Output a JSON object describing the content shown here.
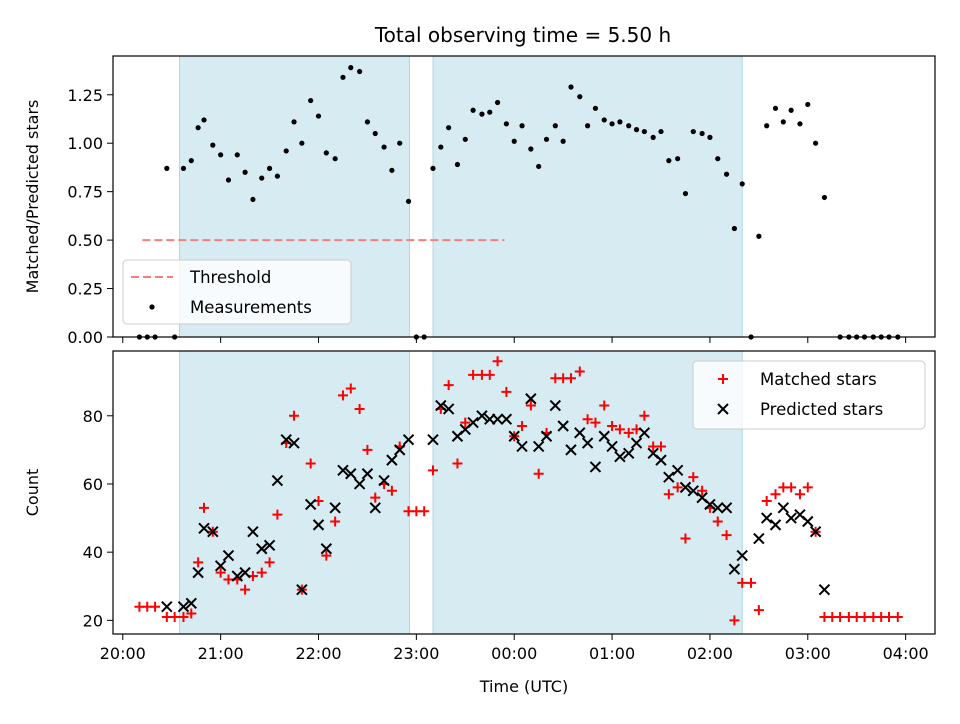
{
  "title": "Total observing time = 5.50 h",
  "chart_data": [
    {
      "type": "scatter",
      "panel": "top",
      "ylabel": "Matched/Predicted stars",
      "ylim": [
        0,
        1.45
      ],
      "yticks": [
        "0.00",
        "0.25",
        "0.50",
        "0.75",
        "1.00",
        "1.25"
      ],
      "grid": false,
      "legend_placement": "lower-left",
      "threshold": {
        "name": "Threshold",
        "value": 0.5,
        "x_start": 20.2,
        "x_end": 23.9,
        "color": "#f08080"
      },
      "series": [
        {
          "name": "Measurements",
          "color": "#000000",
          "points": [
            [
              20.17,
              0
            ],
            [
              20.25,
              0
            ],
            [
              20.33,
              0
            ],
            [
              20.45,
              0.87
            ],
            [
              20.53,
              0
            ],
            [
              20.62,
              0.87
            ],
            [
              20.7,
              0.91
            ],
            [
              20.77,
              1.08
            ],
            [
              20.83,
              1.12
            ],
            [
              20.92,
              0.99
            ],
            [
              21.0,
              0.94
            ],
            [
              21.08,
              0.81
            ],
            [
              21.17,
              0.94
            ],
            [
              21.25,
              0.85
            ],
            [
              21.33,
              0.71
            ],
            [
              21.42,
              0.82
            ],
            [
              21.5,
              0.87
            ],
            [
              21.58,
              0.83
            ],
            [
              21.67,
              0.96
            ],
            [
              21.75,
              1.11
            ],
            [
              21.83,
              1.0
            ],
            [
              21.92,
              1.22
            ],
            [
              22.0,
              1.14
            ],
            [
              22.08,
              0.95
            ],
            [
              22.17,
              0.92
            ],
            [
              22.25,
              1.34
            ],
            [
              22.33,
              1.39
            ],
            [
              22.42,
              1.37
            ],
            [
              22.5,
              1.11
            ],
            [
              22.58,
              1.05
            ],
            [
              22.67,
              0.98
            ],
            [
              22.75,
              0.86
            ],
            [
              22.83,
              1.0
            ],
            [
              22.92,
              0.7
            ],
            [
              23.0,
              0
            ],
            [
              23.08,
              0
            ],
            [
              23.17,
              0.87
            ],
            [
              23.25,
              0.98
            ],
            [
              23.33,
              1.08
            ],
            [
              23.42,
              0.89
            ],
            [
              23.5,
              1.02
            ],
            [
              23.58,
              1.17
            ],
            [
              23.67,
              1.15
            ],
            [
              23.75,
              1.16
            ],
            [
              23.83,
              1.21
            ],
            [
              23.92,
              1.1
            ],
            [
              24.0,
              1.01
            ],
            [
              24.08,
              1.09
            ],
            [
              24.17,
              0.97
            ],
            [
              24.25,
              0.88
            ],
            [
              24.33,
              1.02
            ],
            [
              24.42,
              1.09
            ],
            [
              24.5,
              1.01
            ],
            [
              24.58,
              1.29
            ],
            [
              24.67,
              1.24
            ],
            [
              24.75,
              1.09
            ],
            [
              24.83,
              1.18
            ],
            [
              24.92,
              1.12
            ],
            [
              25.0,
              1.1
            ],
            [
              25.08,
              1.11
            ],
            [
              25.17,
              1.09
            ],
            [
              25.25,
              1.07
            ],
            [
              25.33,
              1.06
            ],
            [
              25.42,
              1.03
            ],
            [
              25.5,
              1.06
            ],
            [
              25.58,
              0.91
            ],
            [
              25.67,
              0.92
            ],
            [
              25.75,
              0.74
            ],
            [
              25.83,
              1.06
            ],
            [
              25.92,
              1.05
            ],
            [
              26.0,
              1.03
            ],
            [
              26.08,
              0.92
            ],
            [
              26.17,
              0.84
            ],
            [
              26.25,
              0.56
            ],
            [
              26.33,
              0.79
            ],
            [
              26.42,
              0
            ],
            [
              26.5,
              0.52
            ],
            [
              26.58,
              1.09
            ],
            [
              26.67,
              1.18
            ],
            [
              26.75,
              1.11
            ],
            [
              26.83,
              1.17
            ],
            [
              26.92,
              1.1
            ],
            [
              27.0,
              1.2
            ],
            [
              27.08,
              1.0
            ],
            [
              27.17,
              0.72
            ],
            [
              27.33,
              0
            ],
            [
              27.42,
              0
            ],
            [
              27.5,
              0
            ],
            [
              27.58,
              0
            ],
            [
              27.67,
              0
            ],
            [
              27.75,
              0
            ],
            [
              27.83,
              0
            ],
            [
              27.92,
              0
            ]
          ]
        }
      ]
    },
    {
      "type": "scatter",
      "panel": "bottom",
      "xlabel": "Time (UTC)",
      "ylabel": "Count",
      "xlim": [
        19.9,
        28.3
      ],
      "ylim": [
        16,
        99
      ],
      "xticks": [
        "20:00",
        "21:00",
        "22:00",
        "23:00",
        "00:00",
        "01:00",
        "02:00",
        "03:00",
        "04:00"
      ],
      "yticks": [
        "20",
        "40",
        "60",
        "80"
      ],
      "grid": false,
      "legend_placement": "upper-right",
      "shaded_intervals": [
        [
          20.58,
          22.93
        ],
        [
          23.17,
          26.33
        ]
      ],
      "series": [
        {
          "name": "Matched stars",
          "marker": "plus",
          "color": "#ff0000",
          "points": [
            [
              20.17,
              24
            ],
            [
              20.25,
              24
            ],
            [
              20.33,
              24
            ],
            [
              20.45,
              21
            ],
            [
              20.53,
              21
            ],
            [
              20.62,
              21
            ],
            [
              20.7,
              22
            ],
            [
              20.77,
              37
            ],
            [
              20.83,
              53
            ],
            [
              20.92,
              46
            ],
            [
              21.0,
              34
            ],
            [
              21.08,
              32
            ],
            [
              21.17,
              32
            ],
            [
              21.25,
              29
            ],
            [
              21.33,
              33
            ],
            [
              21.42,
              34
            ],
            [
              21.5,
              37
            ],
            [
              21.58,
              51
            ],
            [
              21.67,
              72
            ],
            [
              21.75,
              80
            ],
            [
              21.83,
              29
            ],
            [
              21.92,
              66
            ],
            [
              22.0,
              55
            ],
            [
              22.08,
              39
            ],
            [
              22.17,
              49
            ],
            [
              22.25,
              86
            ],
            [
              22.33,
              88
            ],
            [
              22.42,
              82
            ],
            [
              22.5,
              70
            ],
            [
              22.58,
              56
            ],
            [
              22.67,
              60
            ],
            [
              22.75,
              58
            ],
            [
              22.83,
              71
            ],
            [
              22.92,
              52
            ],
            [
              23.0,
              52
            ],
            [
              23.08,
              52
            ],
            [
              23.17,
              64
            ],
            [
              23.25,
              82
            ],
            [
              23.33,
              89
            ],
            [
              23.42,
              66
            ],
            [
              23.5,
              78
            ],
            [
              23.58,
              92
            ],
            [
              23.67,
              92
            ],
            [
              23.75,
              92
            ],
            [
              23.83,
              96
            ],
            [
              23.92,
              87
            ],
            [
              24.0,
              74
            ],
            [
              24.08,
              77
            ],
            [
              24.17,
              83
            ],
            [
              24.25,
              63
            ],
            [
              24.33,
              75
            ],
            [
              24.42,
              91
            ],
            [
              24.5,
              91
            ],
            [
              24.58,
              91
            ],
            [
              24.67,
              93
            ],
            [
              24.75,
              79
            ],
            [
              24.83,
              78
            ],
            [
              24.92,
              83
            ],
            [
              25.0,
              77
            ],
            [
              25.08,
              76
            ],
            [
              25.17,
              75
            ],
            [
              25.25,
              76
            ],
            [
              25.33,
              80
            ],
            [
              25.42,
              71
            ],
            [
              25.5,
              71
            ],
            [
              25.58,
              57
            ],
            [
              25.67,
              59
            ],
            [
              25.75,
              44
            ],
            [
              25.83,
              62
            ],
            [
              25.92,
              58
            ],
            [
              26.0,
              53
            ],
            [
              26.08,
              49
            ],
            [
              26.17,
              45
            ],
            [
              26.25,
              20
            ],
            [
              26.33,
              31
            ],
            [
              26.42,
              31
            ],
            [
              26.5,
              23
            ],
            [
              26.58,
              55
            ],
            [
              26.67,
              57
            ],
            [
              26.75,
              59
            ],
            [
              26.83,
              59
            ],
            [
              26.92,
              57
            ],
            [
              27.0,
              59
            ],
            [
              27.08,
              46
            ],
            [
              27.17,
              21
            ],
            [
              27.25,
              21
            ],
            [
              27.33,
              21
            ],
            [
              27.42,
              21
            ],
            [
              27.5,
              21
            ],
            [
              27.58,
              21
            ],
            [
              27.67,
              21
            ],
            [
              27.75,
              21
            ],
            [
              27.83,
              21
            ],
            [
              27.92,
              21
            ]
          ]
        },
        {
          "name": "Predicted stars",
          "marker": "x",
          "color": "#000000",
          "points": [
            [
              20.45,
              24
            ],
            [
              20.62,
              24
            ],
            [
              20.7,
              25
            ],
            [
              20.77,
              34
            ],
            [
              20.83,
              47
            ],
            [
              20.92,
              46
            ],
            [
              21.0,
              36
            ],
            [
              21.08,
              39
            ],
            [
              21.17,
              33
            ],
            [
              21.25,
              34
            ],
            [
              21.33,
              46
            ],
            [
              21.42,
              41
            ],
            [
              21.5,
              42
            ],
            [
              21.58,
              61
            ],
            [
              21.67,
              73
            ],
            [
              21.75,
              72
            ],
            [
              21.83,
              29
            ],
            [
              21.92,
              54
            ],
            [
              22.0,
              48
            ],
            [
              22.08,
              41
            ],
            [
              22.17,
              53
            ],
            [
              22.25,
              64
            ],
            [
              22.33,
              63
            ],
            [
              22.42,
              60
            ],
            [
              22.5,
              63
            ],
            [
              22.58,
              53
            ],
            [
              22.67,
              61
            ],
            [
              22.75,
              67
            ],
            [
              22.83,
              70
            ],
            [
              22.92,
              73
            ],
            [
              23.17,
              73
            ],
            [
              23.25,
              83
            ],
            [
              23.33,
              82
            ],
            [
              23.42,
              74
            ],
            [
              23.5,
              76
            ],
            [
              23.58,
              78
            ],
            [
              23.67,
              80
            ],
            [
              23.75,
              79
            ],
            [
              23.83,
              79
            ],
            [
              23.92,
              79
            ],
            [
              24.0,
              74
            ],
            [
              24.08,
              71
            ],
            [
              24.17,
              85
            ],
            [
              24.25,
              71
            ],
            [
              24.33,
              74
            ],
            [
              24.42,
              83
            ],
            [
              24.5,
              77
            ],
            [
              24.58,
              70
            ],
            [
              24.67,
              75
            ],
            [
              24.75,
              72
            ],
            [
              24.83,
              65
            ],
            [
              24.92,
              74
            ],
            [
              25.0,
              71
            ],
            [
              25.08,
              68
            ],
            [
              25.17,
              69
            ],
            [
              25.25,
              72
            ],
            [
              25.33,
              75
            ],
            [
              25.42,
              69
            ],
            [
              25.5,
              67
            ],
            [
              25.58,
              62
            ],
            [
              25.67,
              64
            ],
            [
              25.75,
              59
            ],
            [
              25.83,
              58
            ],
            [
              25.92,
              56
            ],
            [
              26.0,
              54
            ],
            [
              26.08,
              53
            ],
            [
              26.17,
              53
            ],
            [
              26.25,
              35
            ],
            [
              26.33,
              39
            ],
            [
              26.5,
              44
            ],
            [
              26.58,
              50
            ],
            [
              26.67,
              48
            ],
            [
              26.75,
              53
            ],
            [
              26.83,
              50
            ],
            [
              26.92,
              51
            ],
            [
              27.0,
              49
            ],
            [
              27.08,
              46
            ],
            [
              27.17,
              29
            ]
          ]
        }
      ]
    }
  ]
}
